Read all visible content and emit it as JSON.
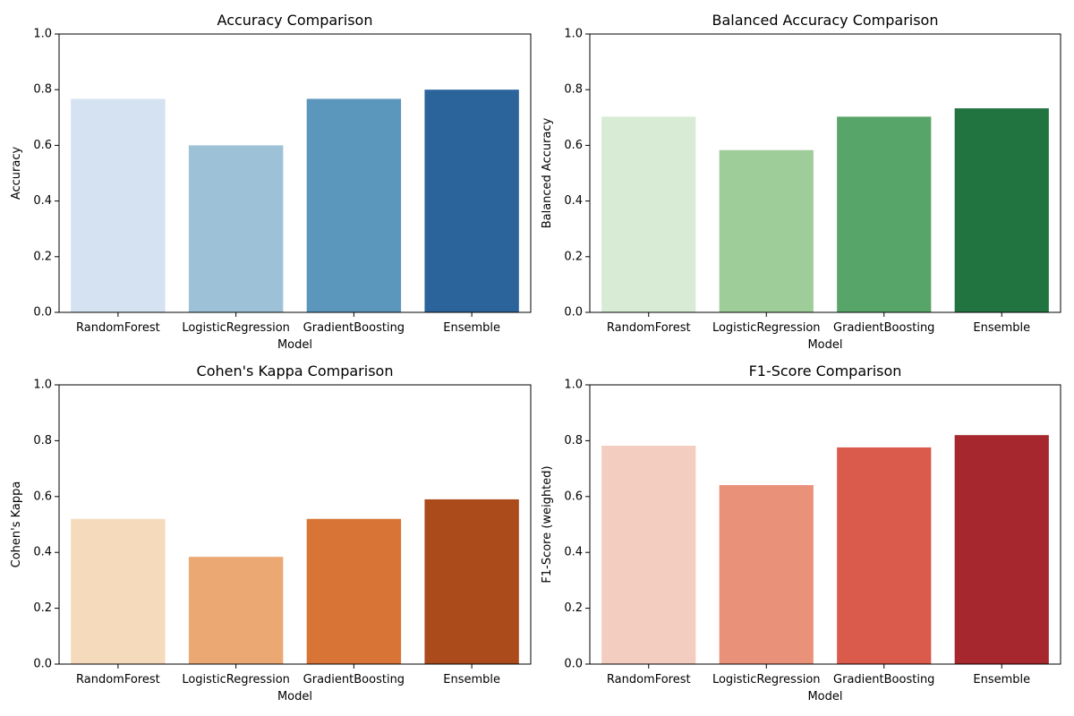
{
  "chart_data": [
    {
      "type": "bar",
      "title": "Accuracy Comparison",
      "xlabel": "Model",
      "ylabel": "Accuracy",
      "categories": [
        "RandomForest",
        "LogisticRegression",
        "GradientBoosting",
        "Ensemble"
      ],
      "values": [
        0.767,
        0.6,
        0.767,
        0.8
      ],
      "colors": [
        "#d4e2f1",
        "#9dc2d8",
        "#5b96bd",
        "#2b649b"
      ],
      "ylim": [
        0,
        1
      ],
      "yticks": [
        "0.0",
        "0.2",
        "0.4",
        "0.6",
        "0.8",
        "1.0"
      ],
      "grid": false
    },
    {
      "type": "bar",
      "title": "Balanced Accuracy Comparison",
      "xlabel": "Model",
      "ylabel": "Balanced Accuracy",
      "categories": [
        "RandomForest",
        "LogisticRegression",
        "GradientBoosting",
        "Ensemble"
      ],
      "values": [
        0.703,
        0.583,
        0.703,
        0.733
      ],
      "colors": [
        "#d7ebd5",
        "#9ecd99",
        "#58a56a",
        "#21733f"
      ],
      "ylim": [
        0,
        1
      ],
      "yticks": [
        "0.0",
        "0.2",
        "0.4",
        "0.6",
        "0.8",
        "1.0"
      ],
      "grid": false
    },
    {
      "type": "bar",
      "title": "Cohen's Kappa Comparison",
      "xlabel": "Model",
      "ylabel": "Cohen's Kappa",
      "categories": [
        "RandomForest",
        "LogisticRegression",
        "GradientBoosting",
        "Ensemble"
      ],
      "values": [
        0.52,
        0.384,
        0.52,
        0.59
      ],
      "colors": [
        "#f5dabb",
        "#eba873",
        "#d87536",
        "#ab4a1b"
      ],
      "ylim": [
        0,
        1
      ],
      "yticks": [
        "0.0",
        "0.2",
        "0.4",
        "0.6",
        "0.8",
        "1.0"
      ],
      "grid": false
    },
    {
      "type": "bar",
      "title": "F1-Score Comparison",
      "xlabel": "Model",
      "ylabel": "F1-Score (weighted)",
      "categories": [
        "RandomForest",
        "LogisticRegression",
        "GradientBoosting",
        "Ensemble"
      ],
      "values": [
        0.782,
        0.641,
        0.776,
        0.82
      ],
      "colors": [
        "#f3cdc0",
        "#ea917a",
        "#da5a4b",
        "#a6272d"
      ],
      "ylim": [
        0,
        1
      ],
      "yticks": [
        "0.0",
        "0.2",
        "0.4",
        "0.6",
        "0.8",
        "1.0"
      ],
      "grid": false
    }
  ]
}
